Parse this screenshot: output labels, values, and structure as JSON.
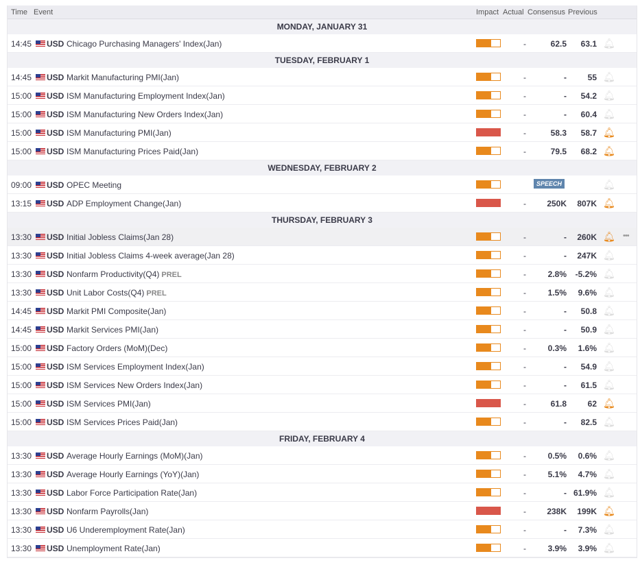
{
  "headers": {
    "time": "Time",
    "event": "Event",
    "impact": "Impact",
    "actual": "Actual",
    "consensus": "Consensus",
    "previous": "Previous"
  },
  "colors": {
    "medium": "#e8891d",
    "high": "#d9574a",
    "speech": "#5f85ad"
  },
  "days": [
    {
      "date": "MONDAY, JANUARY 31",
      "events": [
        {
          "time": "14:45",
          "currency": "USD",
          "name": "Chicago Purchasing Managers' Index(Jan)",
          "impact": "medium",
          "actual": "-",
          "consensus": "62.5",
          "previous": "63.1",
          "alert": false
        }
      ]
    },
    {
      "date": "TUESDAY, FEBRUARY 1",
      "events": [
        {
          "time": "14:45",
          "currency": "USD",
          "name": "Markit Manufacturing PMI(Jan)",
          "impact": "medium",
          "actual": "-",
          "consensus": "-",
          "previous": "55",
          "alert": false
        },
        {
          "time": "15:00",
          "currency": "USD",
          "name": "ISM Manufacturing Employment Index(Jan)",
          "impact": "medium",
          "actual": "-",
          "consensus": "-",
          "previous": "54.2",
          "alert": false
        },
        {
          "time": "15:00",
          "currency": "USD",
          "name": "ISM Manufacturing New Orders Index(Jan)",
          "impact": "medium",
          "actual": "-",
          "consensus": "-",
          "previous": "60.4",
          "alert": false
        },
        {
          "time": "15:00",
          "currency": "USD",
          "name": "ISM Manufacturing PMI(Jan)",
          "impact": "high",
          "actual": "-",
          "consensus": "58.3",
          "previous": "58.7",
          "alert": true
        },
        {
          "time": "15:00",
          "currency": "USD",
          "name": "ISM Manufacturing Prices Paid(Jan)",
          "impact": "medium",
          "actual": "-",
          "consensus": "79.5",
          "previous": "68.2",
          "alert": true
        }
      ]
    },
    {
      "date": "WEDNESDAY, FEBRUARY 2",
      "events": [
        {
          "time": "09:00",
          "currency": "USD",
          "name": "OPEC Meeting",
          "impact": "medium",
          "badge": "SPEECH",
          "alert": false
        },
        {
          "time": "13:15",
          "currency": "USD",
          "name": "ADP Employment Change(Jan)",
          "impact": "high",
          "actual": "-",
          "consensus": "250K",
          "previous": "807K",
          "alert": true
        }
      ]
    },
    {
      "date": "THURSDAY, FEBRUARY 3",
      "events": [
        {
          "time": "13:30",
          "currency": "USD",
          "name": "Initial Jobless Claims(Jan 28)",
          "impact": "medium",
          "actual": "-",
          "consensus": "-",
          "previous": "260K",
          "alert": true,
          "highlighted": true,
          "more": "•••"
        },
        {
          "time": "13:30",
          "currency": "USD",
          "name": "Initial Jobless Claims 4-week average(Jan 28)",
          "impact": "medium",
          "actual": "-",
          "consensus": "-",
          "previous": "247K",
          "alert": false
        },
        {
          "time": "13:30",
          "currency": "USD",
          "name": "Nonfarm Productivity(Q4)",
          "tag": "PREL",
          "impact": "medium",
          "actual": "-",
          "consensus": "2.8%",
          "previous": "-5.2%",
          "alert": false
        },
        {
          "time": "13:30",
          "currency": "USD",
          "name": "Unit Labor Costs(Q4)",
          "tag": "PREL",
          "impact": "medium",
          "actual": "-",
          "consensus": "1.5%",
          "previous": "9.6%",
          "alert": false
        },
        {
          "time": "14:45",
          "currency": "USD",
          "name": "Markit PMI Composite(Jan)",
          "impact": "medium",
          "actual": "-",
          "consensus": "-",
          "previous": "50.8",
          "alert": false
        },
        {
          "time": "14:45",
          "currency": "USD",
          "name": "Markit Services PMI(Jan)",
          "impact": "medium",
          "actual": "-",
          "consensus": "-",
          "previous": "50.9",
          "alert": false
        },
        {
          "time": "15:00",
          "currency": "USD",
          "name": "Factory Orders (MoM)(Dec)",
          "impact": "medium",
          "actual": "-",
          "consensus": "0.3%",
          "previous": "1.6%",
          "alert": false
        },
        {
          "time": "15:00",
          "currency": "USD",
          "name": "ISM Services Employment Index(Jan)",
          "impact": "medium",
          "actual": "-",
          "consensus": "-",
          "previous": "54.9",
          "alert": false
        },
        {
          "time": "15:00",
          "currency": "USD",
          "name": "ISM Services New Orders Index(Jan)",
          "impact": "medium",
          "actual": "-",
          "consensus": "-",
          "previous": "61.5",
          "alert": false
        },
        {
          "time": "15:00",
          "currency": "USD",
          "name": "ISM Services PMI(Jan)",
          "impact": "high",
          "actual": "-",
          "consensus": "61.8",
          "previous": "62",
          "alert": true
        },
        {
          "time": "15:00",
          "currency": "USD",
          "name": "ISM Services Prices Paid(Jan)",
          "impact": "medium",
          "actual": "-",
          "consensus": "-",
          "previous": "82.5",
          "alert": false
        }
      ]
    },
    {
      "date": "FRIDAY, FEBRUARY 4",
      "events": [
        {
          "time": "13:30",
          "currency": "USD",
          "name": "Average Hourly Earnings (MoM)(Jan)",
          "impact": "medium",
          "actual": "-",
          "consensus": "0.5%",
          "previous": "0.6%",
          "alert": false
        },
        {
          "time": "13:30",
          "currency": "USD",
          "name": "Average Hourly Earnings (YoY)(Jan)",
          "impact": "medium",
          "actual": "-",
          "consensus": "5.1%",
          "previous": "4.7%",
          "alert": false
        },
        {
          "time": "13:30",
          "currency": "USD",
          "name": "Labor Force Participation Rate(Jan)",
          "impact": "medium",
          "actual": "-",
          "consensus": "-",
          "previous": "61.9%",
          "alert": false
        },
        {
          "time": "13:30",
          "currency": "USD",
          "name": "Nonfarm Payrolls(Jan)",
          "impact": "high",
          "actual": "-",
          "consensus": "238K",
          "previous": "199K",
          "alert": true
        },
        {
          "time": "13:30",
          "currency": "USD",
          "name": "U6 Underemployment Rate(Jan)",
          "impact": "medium",
          "actual": "-",
          "consensus": "-",
          "previous": "7.3%",
          "alert": false
        },
        {
          "time": "13:30",
          "currency": "USD",
          "name": "Unemployment Rate(Jan)",
          "impact": "medium",
          "actual": "-",
          "consensus": "3.9%",
          "previous": "3.9%",
          "alert": false
        }
      ]
    }
  ]
}
